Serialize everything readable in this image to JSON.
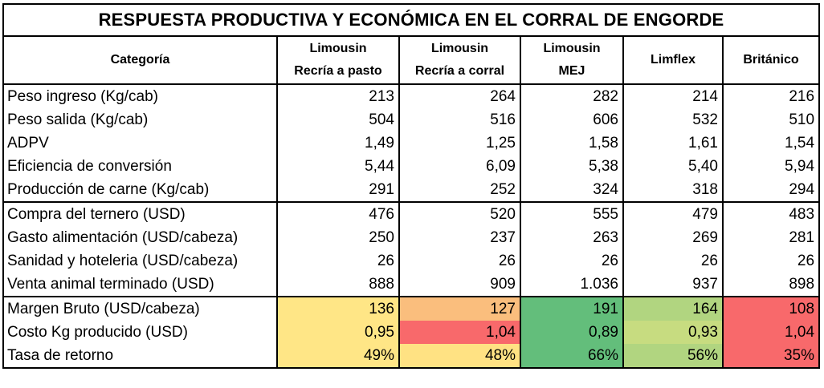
{
  "title": "RESPUESTA PRODUCTIVA Y ECONÓMICA EN EL CORRAL DE ENGORDE",
  "header": {
    "category": "Categoría",
    "columns": [
      {
        "line1": "Limousin",
        "line2": "Recría a pasto"
      },
      {
        "line1": "Limousin",
        "line2": "Recría a corral"
      },
      {
        "line1": "Limousin",
        "line2": "MEJ"
      },
      {
        "line1": "Limflex",
        "line2": ""
      },
      {
        "line1": "Británico",
        "line2": ""
      }
    ]
  },
  "groups": [
    {
      "rows": [
        {
          "label": "Peso ingreso (Kg/cab)",
          "values": [
            "213",
            "264",
            "282",
            "214",
            "216"
          ]
        },
        {
          "label": "Peso salida (Kg/cab)",
          "values": [
            "504",
            "516",
            "606",
            "532",
            "510"
          ]
        },
        {
          "label": "ADPV",
          "values": [
            "1,49",
            "1,25",
            "1,58",
            "1,61",
            "1,54"
          ]
        },
        {
          "label": "Eficiencia de conversión",
          "values": [
            "5,44",
            "6,09",
            "5,38",
            "5,40",
            "5,94"
          ]
        },
        {
          "label": "Producción de carne (Kg/cab)",
          "values": [
            "291",
            "252",
            "324",
            "318",
            "294"
          ]
        }
      ]
    },
    {
      "rows": [
        {
          "label": "Compra del ternero (USD)",
          "values": [
            "476",
            "520",
            "555",
            "479",
            "483"
          ]
        },
        {
          "label": "Gasto alimentación (USD/cabeza)",
          "values": [
            "250",
            "237",
            "263",
            "269",
            "281"
          ]
        },
        {
          "label": "Sanidad y hoteleria (USD/cabeza)",
          "values": [
            "26",
            "26",
            "26",
            "26",
            "26"
          ]
        },
        {
          "label": "Venta animal terminado (USD)",
          "values": [
            "888",
            "909",
            "1.036",
            "937",
            "898"
          ]
        }
      ]
    },
    {
      "rows": [
        {
          "label": "Margen Bruto (USD/cabeza)",
          "values": [
            "136",
            "127",
            "191",
            "164",
            "108"
          ],
          "colors": [
            "#FFE686",
            "#FABE7D",
            "#63BE7B",
            "#B1D580",
            "#F8696B"
          ]
        },
        {
          "label": "Costo Kg producido (USD)",
          "values": [
            "0,95",
            "1,04",
            "0,89",
            "0,93",
            "1,04"
          ],
          "colors": [
            "#FFE686",
            "#F8696B",
            "#63BE7B",
            "#C7DC80",
            "#F8696B"
          ]
        },
        {
          "label": "Tasa de retorno",
          "values": [
            "49%",
            "48%",
            "66%",
            "56%",
            "35%"
          ],
          "colors": [
            "#FFE686",
            "#FFE283",
            "#63BE7B",
            "#B1D580",
            "#F8696B"
          ]
        }
      ]
    }
  ]
}
